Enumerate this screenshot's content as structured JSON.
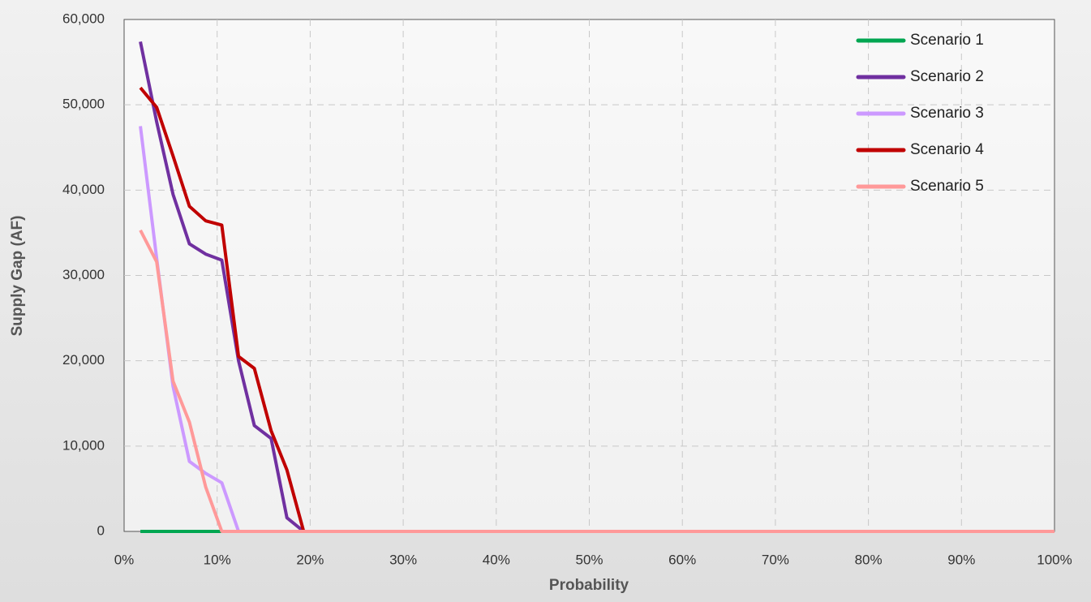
{
  "chart_data": {
    "type": "line",
    "xlabel": "Probability",
    "ylabel": "Supply Gap (AF)",
    "x": [
      1.75,
      3.5,
      5.26,
      7.02,
      8.77,
      10.5,
      12.3,
      14.0,
      15.8,
      17.5,
      19.3,
      21.1,
      100
    ],
    "series": [
      {
        "name": "Scenario 1",
        "color": "#00a651",
        "values": [
          0,
          0,
          0,
          0,
          0,
          0,
          0,
          0,
          0,
          0,
          0,
          0,
          0
        ]
      },
      {
        "name": "Scenario 2",
        "color": "#7030a0",
        "values": [
          57400,
          48000,
          39500,
          33700,
          32500,
          31800,
          20000,
          12400,
          10900,
          1600,
          0,
          0,
          0
        ]
      },
      {
        "name": "Scenario 3",
        "color": "#cc99ff",
        "values": [
          47500,
          32000,
          17000,
          8200,
          6800,
          5700,
          0,
          0,
          0,
          0,
          0,
          0,
          0
        ]
      },
      {
        "name": "Scenario 4",
        "color": "#c00000",
        "values": [
          52000,
          49700,
          44000,
          38100,
          36400,
          35900,
          20500,
          19100,
          11800,
          7200,
          0,
          0,
          0
        ]
      },
      {
        "name": "Scenario 5",
        "color": "#ff9999",
        "values": [
          35300,
          31600,
          17600,
          12800,
          5200,
          0,
          0,
          0,
          0,
          0,
          0,
          0,
          0
        ]
      }
    ],
    "xlim": [
      0,
      100
    ],
    "xticks": [
      {
        "value": 0,
        "label": "0%"
      },
      {
        "value": 10,
        "label": "10%"
      },
      {
        "value": 20,
        "label": "20%"
      },
      {
        "value": 30,
        "label": "30%"
      },
      {
        "value": 40,
        "label": "40%"
      },
      {
        "value": 50,
        "label": "50%"
      },
      {
        "value": 60,
        "label": "60%"
      },
      {
        "value": 70,
        "label": "70%"
      },
      {
        "value": 80,
        "label": "80%"
      },
      {
        "value": 90,
        "label": "90%"
      },
      {
        "value": 100,
        "label": "100%"
      }
    ],
    "ylim": [
      0,
      60000
    ],
    "yticks": [
      0,
      {
        "value": 10000,
        "label": "10,000"
      },
      {
        "value": 20000,
        "label": "20,000"
      },
      {
        "value": 30000,
        "label": "30,000"
      },
      {
        "value": 40000,
        "label": "40,000"
      },
      {
        "value": 50000,
        "label": "50,000"
      },
      {
        "value": 60000,
        "label": "60,000"
      }
    ],
    "grid": true,
    "legend": "upper right"
  }
}
